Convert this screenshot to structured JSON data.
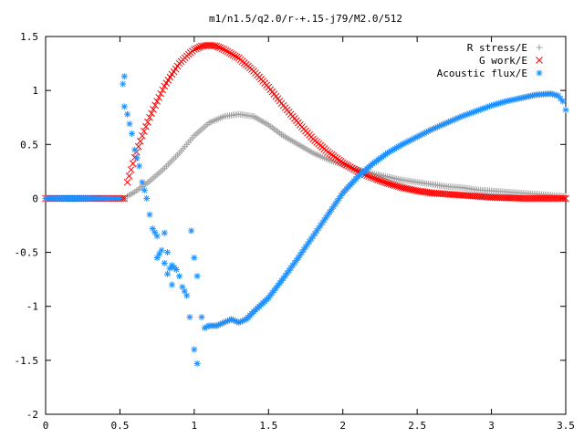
{
  "chart_data": {
    "type": "scatter",
    "title": "m1/n1.5/q2.0/r-+.15-j79/M2.0/512",
    "xlim": [
      0,
      3.5
    ],
    "ylim": [
      -2,
      1.5
    ],
    "x_ticks": [
      "0",
      "0.5",
      "1",
      "1.5",
      "2",
      "2.5",
      "3",
      "3.5"
    ],
    "x_tick_values": [
      0,
      0.5,
      1,
      1.5,
      2,
      2.5,
      3,
      3.5
    ],
    "y_ticks": [
      "1.5",
      "1",
      "0.5",
      "0",
      "-0.5",
      "-1",
      "-1.5",
      "-2"
    ],
    "y_tick_values": [
      1.5,
      1,
      0.5,
      0,
      -0.5,
      -1,
      -1.5,
      -2
    ],
    "legend_position": "top-right",
    "grid": false,
    "series": [
      {
        "name": "R stress/E",
        "marker": "plus",
        "color": "#a0a0a0",
        "points": [
          [
            0.0,
            0.0
          ],
          [
            0.1,
            0.0
          ],
          [
            0.2,
            0.0
          ],
          [
            0.3,
            0.0
          ],
          [
            0.4,
            0.0
          ],
          [
            0.53,
            0.0
          ],
          [
            0.55,
            0.02
          ],
          [
            0.6,
            0.06
          ],
          [
            0.7,
            0.16
          ],
          [
            0.8,
            0.28
          ],
          [
            0.9,
            0.42
          ],
          [
            1.0,
            0.58
          ],
          [
            1.1,
            0.7
          ],
          [
            1.2,
            0.76
          ],
          [
            1.3,
            0.78
          ],
          [
            1.4,
            0.76
          ],
          [
            1.5,
            0.68
          ],
          [
            1.6,
            0.58
          ],
          [
            1.7,
            0.5
          ],
          [
            1.8,
            0.42
          ],
          [
            1.9,
            0.36
          ],
          [
            2.0,
            0.31
          ],
          [
            2.1,
            0.27
          ],
          [
            2.2,
            0.23
          ],
          [
            2.3,
            0.2
          ],
          [
            2.4,
            0.17
          ],
          [
            2.5,
            0.15
          ],
          [
            2.6,
            0.13
          ],
          [
            2.7,
            0.11
          ],
          [
            2.8,
            0.1
          ],
          [
            2.9,
            0.08
          ],
          [
            3.0,
            0.07
          ],
          [
            3.1,
            0.06
          ],
          [
            3.2,
            0.05
          ],
          [
            3.3,
            0.04
          ],
          [
            3.4,
            0.03
          ],
          [
            3.5,
            0.02
          ]
        ]
      },
      {
        "name": "G work/E",
        "marker": "cross",
        "color": "#ff0000",
        "points": [
          [
            0.0,
            0.0
          ],
          [
            0.1,
            0.0
          ],
          [
            0.2,
            0.0
          ],
          [
            0.3,
            0.0
          ],
          [
            0.4,
            0.0
          ],
          [
            0.53,
            0.0
          ],
          [
            0.55,
            0.15
          ],
          [
            0.6,
            0.38
          ],
          [
            0.65,
            0.58
          ],
          [
            0.7,
            0.75
          ],
          [
            0.75,
            0.9
          ],
          [
            0.8,
            1.04
          ],
          [
            0.85,
            1.15
          ],
          [
            0.9,
            1.25
          ],
          [
            0.95,
            1.32
          ],
          [
            1.0,
            1.38
          ],
          [
            1.05,
            1.41
          ],
          [
            1.1,
            1.42
          ],
          [
            1.15,
            1.41
          ],
          [
            1.2,
            1.38
          ],
          [
            1.3,
            1.3
          ],
          [
            1.4,
            1.18
          ],
          [
            1.5,
            1.03
          ],
          [
            1.6,
            0.86
          ],
          [
            1.7,
            0.7
          ],
          [
            1.8,
            0.55
          ],
          [
            1.9,
            0.43
          ],
          [
            2.0,
            0.33
          ],
          [
            2.1,
            0.25
          ],
          [
            2.2,
            0.19
          ],
          [
            2.3,
            0.14
          ],
          [
            2.4,
            0.1
          ],
          [
            2.5,
            0.07
          ],
          [
            2.6,
            0.05
          ],
          [
            2.7,
            0.04
          ],
          [
            2.8,
            0.03
          ],
          [
            2.9,
            0.02
          ],
          [
            3.0,
            0.01
          ],
          [
            3.2,
            0.0
          ],
          [
            3.4,
            0.0
          ],
          [
            3.5,
            0.0
          ]
        ]
      },
      {
        "name": "Acoustic flux/E",
        "marker": "star",
        "color": "#1e90ff",
        "points": [
          [
            0.0,
            0.0
          ],
          [
            0.1,
            0.0
          ],
          [
            0.2,
            0.0
          ],
          [
            0.3,
            0.0
          ],
          [
            0.4,
            0.0
          ],
          [
            0.5,
            0.0
          ],
          [
            0.52,
            1.06
          ],
          [
            0.53,
            1.13
          ],
          [
            0.53,
            0.85
          ],
          [
            0.55,
            0.78
          ],
          [
            0.58,
            0.6
          ],
          [
            0.6,
            0.45
          ],
          [
            0.63,
            0.3
          ],
          [
            0.65,
            0.15
          ],
          [
            0.68,
            0.0
          ],
          [
            0.7,
            -0.15
          ],
          [
            0.72,
            -0.28
          ],
          [
            0.75,
            -0.35
          ],
          [
            0.78,
            -0.48
          ],
          [
            0.8,
            -0.6
          ],
          [
            0.82,
            -0.7
          ],
          [
            0.85,
            -0.8
          ],
          [
            0.88,
            -0.66
          ],
          [
            0.9,
            -0.72
          ],
          [
            0.92,
            -0.82
          ],
          [
            0.95,
            -0.9
          ],
          [
            0.97,
            -1.1
          ],
          [
            1.0,
            -1.4
          ],
          [
            1.02,
            -1.53
          ],
          [
            1.05,
            -1.1
          ],
          [
            1.07,
            -1.2
          ],
          [
            0.82,
            -0.5
          ],
          [
            0.85,
            -0.62
          ],
          [
            0.75,
            -0.55
          ],
          [
            0.8,
            -0.32
          ],
          [
            0.98,
            -0.3
          ],
          [
            1.0,
            -0.55
          ],
          [
            1.02,
            -0.72
          ],
          [
            1.1,
            -1.18
          ],
          [
            1.15,
            -1.18
          ],
          [
            1.2,
            -1.15
          ],
          [
            1.25,
            -1.12
          ],
          [
            1.3,
            -1.15
          ],
          [
            1.35,
            -1.12
          ],
          [
            1.4,
            -1.05
          ],
          [
            1.5,
            -0.92
          ],
          [
            1.6,
            -0.74
          ],
          [
            1.7,
            -0.55
          ],
          [
            1.8,
            -0.35
          ],
          [
            1.9,
            -0.15
          ],
          [
            2.0,
            0.05
          ],
          [
            2.1,
            0.2
          ],
          [
            2.2,
            0.32
          ],
          [
            2.3,
            0.42
          ],
          [
            2.4,
            0.5
          ],
          [
            2.5,
            0.57
          ],
          [
            2.6,
            0.64
          ],
          [
            2.7,
            0.7
          ],
          [
            2.8,
            0.76
          ],
          [
            2.9,
            0.81
          ],
          [
            3.0,
            0.86
          ],
          [
            3.1,
            0.9
          ],
          [
            3.2,
            0.93
          ],
          [
            3.3,
            0.96
          ],
          [
            3.4,
            0.97
          ],
          [
            3.45,
            0.95
          ],
          [
            3.48,
            0.9
          ],
          [
            3.5,
            0.82
          ]
        ]
      }
    ]
  }
}
